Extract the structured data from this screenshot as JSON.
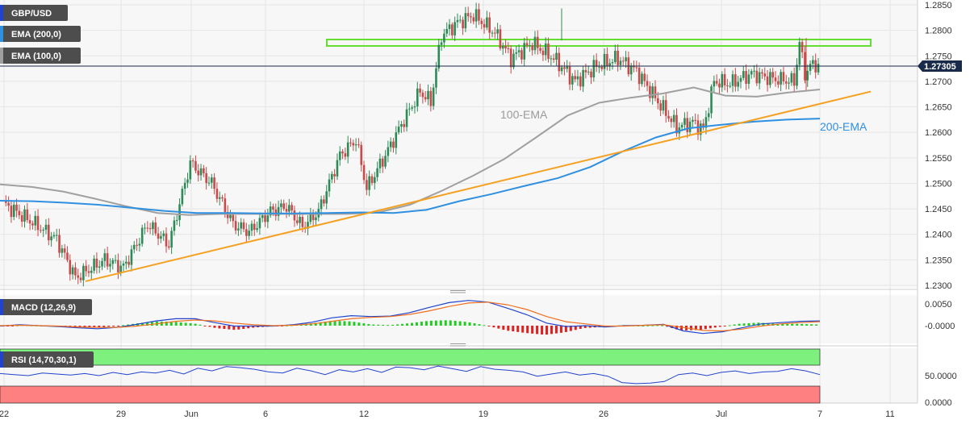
{
  "chart_data": {
    "type": "candlestick",
    "symbol": "GBP/USD",
    "indicators": [
      "EMA (200,0)",
      "EMA (100,0)"
    ],
    "price_axis": {
      "ticks": [
        "1.2850",
        "1.2800",
        "1.2750",
        "1.2700",
        "1.2650",
        "1.2600",
        "1.2550",
        "1.2500",
        "1.2450",
        "1.2400",
        "1.2350",
        "1.2300"
      ],
      "ylim": [
        1.2293,
        1.2872
      ],
      "current_price": "1.27305",
      "current_value": 1.27305
    },
    "x_axis": {
      "ticks": [
        "22",
        "29",
        "Jun",
        "6",
        "12",
        "19",
        "26",
        "Jul",
        "7",
        "11"
      ]
    },
    "annotations": {
      "ema100_label": "100-EMA",
      "ema200_label": "200-EMA"
    },
    "colors": {
      "up": "#2e8b57",
      "down": "#c94a4a",
      "ema100": "#a0a0a0",
      "ema200": "#2f8fe0",
      "trendline": "#f5a020",
      "resistance": "#66dd33",
      "macd": "#2244cc",
      "signal": "#f07020",
      "rsi": "#2244cc",
      "overbought": "#7ef07e",
      "oversold": "#ff8080",
      "tag_bg": "#4d4d4d"
    },
    "resistance_zone": [
      1.2771,
      1.2785
    ],
    "trendline": {
      "from_date": "May 26",
      "from_value": 1.2308,
      "to_date": "Jul 10",
      "to_value": 1.268
    },
    "ema200_series": [
      1.2466,
      1.2465,
      1.2462,
      1.2458,
      1.2452,
      1.2446,
      1.2442,
      1.2442,
      1.2441,
      1.2441,
      1.2442,
      1.2443,
      1.2442,
      1.2448,
      1.2465,
      1.2479,
      1.2495,
      1.251,
      1.2532,
      1.2563,
      1.259,
      1.2608,
      1.2615,
      1.2621,
      1.2625,
      1.2627
    ],
    "ema100_series": [
      1.2498,
      1.2493,
      1.2484,
      1.247,
      1.2455,
      1.2442,
      1.2438,
      1.244,
      1.244,
      1.244,
      1.244,
      1.244,
      1.2443,
      1.2458,
      1.2485,
      1.2515,
      1.2548,
      1.259,
      1.2633,
      1.2658,
      1.2668,
      1.2676,
      1.2688,
      1.2672,
      1.267,
      1.2678,
      1.2684
    ],
    "macd_panel": {
      "label": "MACD (12,26,9)",
      "ticks": [
        "0.0050",
        "-0.0000"
      ],
      "macd_series": [
        -0.0001,
        0.0002,
        0.0,
        -0.0002,
        -0.0005,
        -0.0007,
        -0.0004,
        0.0003,
        0.0011,
        0.0016,
        0.0016,
        0.0007,
        -0.0001,
        -0.0001,
        -0.0001,
        0.0002,
        0.0008,
        0.0018,
        0.0023,
        0.0021,
        0.0022,
        0.003,
        0.0042,
        0.0053,
        0.0058,
        0.0054,
        0.004,
        0.0025,
        0.0006,
        -0.0002,
        0.0,
        -0.0003,
        0.0,
        0.0001,
        0.0003,
        -0.0012,
        -0.0018,
        -0.0014,
        -0.0005,
        0.0004,
        0.0007,
        0.001,
        0.0011
      ],
      "signal_series": [
        0.0,
        0.0001,
        0.0,
        -0.0001,
        -0.0003,
        -0.0004,
        -0.0004,
        -0.0001,
        0.0004,
        0.001,
        0.0013,
        0.0011,
        0.0006,
        0.0002,
        0.0,
        0.0001,
        0.0004,
        0.001,
        0.0016,
        0.0019,
        0.0021,
        0.0026,
        0.0034,
        0.0044,
        0.0052,
        0.0054,
        0.0048,
        0.0037,
        0.0021,
        0.0009,
        0.0004,
        -0.0001,
        -0.0001,
        0.0001,
        0.0002,
        -0.0004,
        -0.0011,
        -0.0012,
        -0.0008,
        -0.0001,
        0.0004,
        0.0007,
        0.0009
      ]
    },
    "rsi_panel": {
      "label": "RSI (14,70,30,1)",
      "ticks": [
        "50.0000",
        "0.0000"
      ],
      "overbought": 70,
      "oversold": 30,
      "rsi_series": [
        54,
        52,
        50,
        55,
        53,
        51,
        54,
        50,
        56,
        52,
        57,
        55,
        60,
        53,
        64,
        59,
        67,
        65,
        62,
        57,
        55,
        64,
        59,
        52,
        61,
        57,
        63,
        56,
        66,
        65,
        61,
        68,
        63,
        58,
        67,
        62,
        60,
        57,
        49,
        53,
        57,
        51,
        54,
        49,
        37,
        35,
        36,
        39,
        52,
        55,
        50,
        56,
        59,
        54,
        57,
        58,
        63,
        59,
        52
      ]
    }
  }
}
